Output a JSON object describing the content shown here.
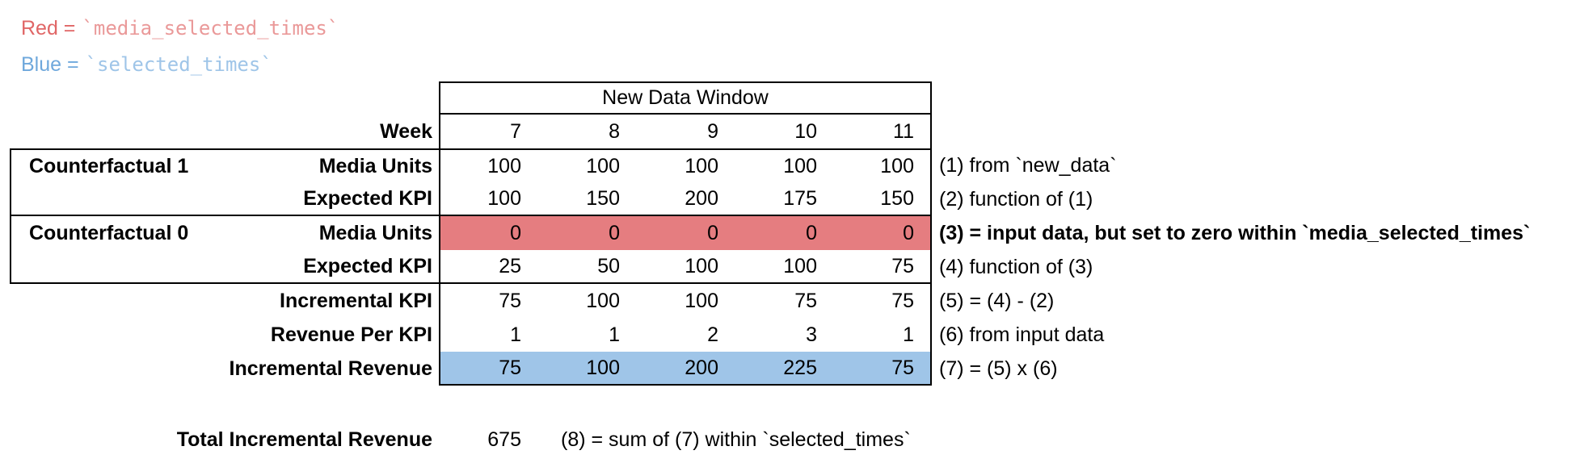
{
  "legend": {
    "red_label": "Red =",
    "red_code": "`media_selected_times`",
    "blue_label": "Blue =",
    "blue_code": "`selected_times`"
  },
  "colors": {
    "red_text": "#e06666",
    "red_code_text": "#ea9999",
    "blue_text": "#6fa8dc",
    "blue_code_text": "#9fc5e8",
    "red_row_bg": "#e57d80",
    "blue_row_bg": "#9fc5e8",
    "border": "#000000"
  },
  "table": {
    "header": "New Data Window",
    "week_row": {
      "label": "Week",
      "values": [
        "7",
        "8",
        "9",
        "10",
        "11"
      ]
    },
    "groups": {
      "cf1": "Counterfactual 1",
      "cf0": "Counterfactual 0"
    },
    "rows": [
      {
        "label": "Media Units",
        "values": [
          "100",
          "100",
          "100",
          "100",
          "100"
        ],
        "annotation": "(1) from `new_data`"
      },
      {
        "label": "Expected KPI",
        "values": [
          "100",
          "150",
          "200",
          "175",
          "150"
        ],
        "annotation": "(2) function of (1)"
      },
      {
        "label": "Media Units",
        "values": [
          "0",
          "0",
          "0",
          "0",
          "0"
        ],
        "annotation": "(3) = input data, but set to zero within `media_selected_times`"
      },
      {
        "label": "Expected KPI",
        "values": [
          "25",
          "50",
          "100",
          "100",
          "75"
        ],
        "annotation": "(4) function of (3)"
      },
      {
        "label": "Incremental KPI",
        "values": [
          "75",
          "100",
          "100",
          "75",
          "75"
        ],
        "annotation": "(5) = (4) - (2)"
      },
      {
        "label": "Revenue Per KPI",
        "values": [
          "1",
          "1",
          "2",
          "3",
          "1"
        ],
        "annotation": "(6) from input data"
      },
      {
        "label": "Incremental Revenue",
        "values": [
          "75",
          "100",
          "200",
          "225",
          "75"
        ],
        "annotation": "(7) = (5) x (6)"
      }
    ]
  },
  "total": {
    "label": "Total Incremental Revenue",
    "value": "675",
    "annotation": "(8) = sum of (7) within `selected_times`"
  }
}
